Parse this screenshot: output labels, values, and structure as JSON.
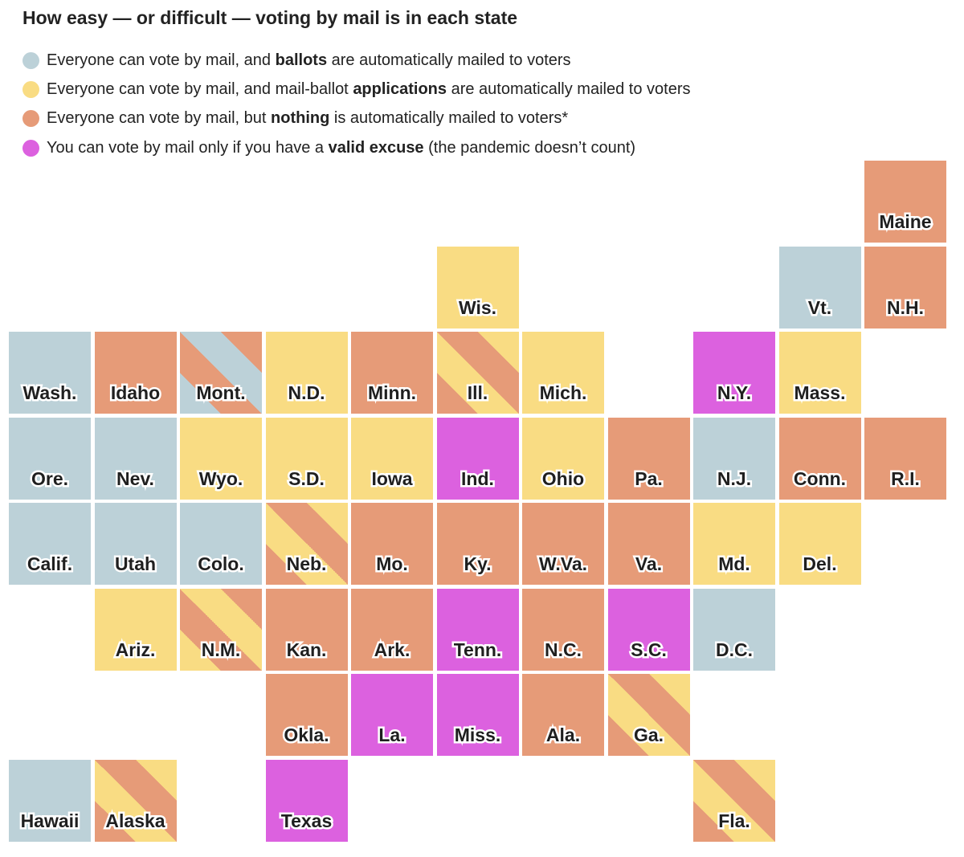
{
  "title": "How easy — or difficult — voting by mail is in each state",
  "colors": {
    "ballots": "#bcd1d8",
    "applications": "#f9dc83",
    "nothing": "#e69b78",
    "excuse": "#dc61df"
  },
  "legend": [
    {
      "category": "ballots",
      "text_before": "Everyone can vote by mail, and ",
      "bold": "ballots",
      "text_after": " are automatically mailed to voters"
    },
    {
      "category": "applications",
      "text_before": "Everyone can vote by mail, and mail-ballot ",
      "bold": "applications",
      "text_after": " are automatically mailed to voters"
    },
    {
      "category": "nothing",
      "text_before": "Everyone can vote by mail, but ",
      "bold": "nothing",
      "text_after": " is automatically mailed to voters*"
    },
    {
      "category": "excuse",
      "text_before": "You can vote by mail only if you have a ",
      "bold": "valid excuse",
      "text_after": " (the pandemic doesn’t count)"
    }
  ],
  "states": [
    {
      "label": "Maine",
      "row": 0,
      "col": 10,
      "category": "nothing"
    },
    {
      "label": "Wis.",
      "row": 1,
      "col": 5,
      "category": "applications"
    },
    {
      "label": "Vt.",
      "row": 1,
      "col": 9,
      "category": "ballots"
    },
    {
      "label": "N.H.",
      "row": 1,
      "col": 10,
      "category": "nothing"
    },
    {
      "label": "Wash.",
      "row": 2,
      "col": 0,
      "category": "ballots"
    },
    {
      "label": "Idaho",
      "row": 2,
      "col": 1,
      "category": "nothing"
    },
    {
      "label": "Mont.",
      "row": 2,
      "col": 2,
      "category": "ballots",
      "stripe": "nothing"
    },
    {
      "label": "N.D.",
      "row": 2,
      "col": 3,
      "category": "applications"
    },
    {
      "label": "Minn.",
      "row": 2,
      "col": 4,
      "category": "nothing"
    },
    {
      "label": "Ill.",
      "row": 2,
      "col": 5,
      "category": "nothing",
      "stripe": "applications"
    },
    {
      "label": "Mich.",
      "row": 2,
      "col": 6,
      "category": "applications"
    },
    {
      "label": "N.Y.",
      "row": 2,
      "col": 8,
      "category": "excuse"
    },
    {
      "label": "Mass.",
      "row": 2,
      "col": 9,
      "category": "applications"
    },
    {
      "label": "Ore.",
      "row": 3,
      "col": 0,
      "category": "ballots"
    },
    {
      "label": "Nev.",
      "row": 3,
      "col": 1,
      "category": "ballots"
    },
    {
      "label": "Wyo.",
      "row": 3,
      "col": 2,
      "category": "applications"
    },
    {
      "label": "S.D.",
      "row": 3,
      "col": 3,
      "category": "applications"
    },
    {
      "label": "Iowa",
      "row": 3,
      "col": 4,
      "category": "applications"
    },
    {
      "label": "Ind.",
      "row": 3,
      "col": 5,
      "category": "excuse"
    },
    {
      "label": "Ohio",
      "row": 3,
      "col": 6,
      "category": "applications"
    },
    {
      "label": "Pa.",
      "row": 3,
      "col": 7,
      "category": "nothing"
    },
    {
      "label": "N.J.",
      "row": 3,
      "col": 8,
      "category": "ballots"
    },
    {
      "label": "Conn.",
      "row": 3,
      "col": 9,
      "category": "nothing"
    },
    {
      "label": "R.I.",
      "row": 3,
      "col": 10,
      "category": "nothing"
    },
    {
      "label": "Calif.",
      "row": 4,
      "col": 0,
      "category": "ballots"
    },
    {
      "label": "Utah",
      "row": 4,
      "col": 1,
      "category": "ballots"
    },
    {
      "label": "Colo.",
      "row": 4,
      "col": 2,
      "category": "ballots"
    },
    {
      "label": "Neb.",
      "row": 4,
      "col": 3,
      "category": "nothing",
      "stripe": "applications"
    },
    {
      "label": "Mo.",
      "row": 4,
      "col": 4,
      "category": "nothing"
    },
    {
      "label": "Ky.",
      "row": 4,
      "col": 5,
      "category": "nothing"
    },
    {
      "label": "W.Va.",
      "row": 4,
      "col": 6,
      "category": "nothing"
    },
    {
      "label": "Va.",
      "row": 4,
      "col": 7,
      "category": "nothing"
    },
    {
      "label": "Md.",
      "row": 4,
      "col": 8,
      "category": "applications"
    },
    {
      "label": "Del.",
      "row": 4,
      "col": 9,
      "category": "applications"
    },
    {
      "label": "Ariz.",
      "row": 5,
      "col": 1,
      "category": "applications"
    },
    {
      "label": "N.M.",
      "row": 5,
      "col": 2,
      "category": "applications",
      "stripe": "nothing"
    },
    {
      "label": "Kan.",
      "row": 5,
      "col": 3,
      "category": "nothing"
    },
    {
      "label": "Ark.",
      "row": 5,
      "col": 4,
      "category": "nothing"
    },
    {
      "label": "Tenn.",
      "row": 5,
      "col": 5,
      "category": "excuse"
    },
    {
      "label": "N.C.",
      "row": 5,
      "col": 6,
      "category": "nothing"
    },
    {
      "label": "S.C.",
      "row": 5,
      "col": 7,
      "category": "excuse"
    },
    {
      "label": "D.C.",
      "row": 5,
      "col": 8,
      "category": "ballots"
    },
    {
      "label": "Okla.",
      "row": 6,
      "col": 3,
      "category": "nothing"
    },
    {
      "label": "La.",
      "row": 6,
      "col": 4,
      "category": "excuse"
    },
    {
      "label": "Miss.",
      "row": 6,
      "col": 5,
      "category": "excuse"
    },
    {
      "label": "Ala.",
      "row": 6,
      "col": 6,
      "category": "nothing"
    },
    {
      "label": "Ga.",
      "row": 6,
      "col": 7,
      "category": "nothing",
      "stripe": "applications"
    },
    {
      "label": "Hawaii",
      "row": 7,
      "col": 0,
      "category": "ballots"
    },
    {
      "label": "Alaska",
      "row": 7,
      "col": 1,
      "category": "nothing",
      "stripe": "applications"
    },
    {
      "label": "Texas",
      "row": 7,
      "col": 3,
      "category": "excuse"
    },
    {
      "label": "Fla.",
      "row": 7,
      "col": 8,
      "category": "nothing",
      "stripe": "applications"
    }
  ]
}
